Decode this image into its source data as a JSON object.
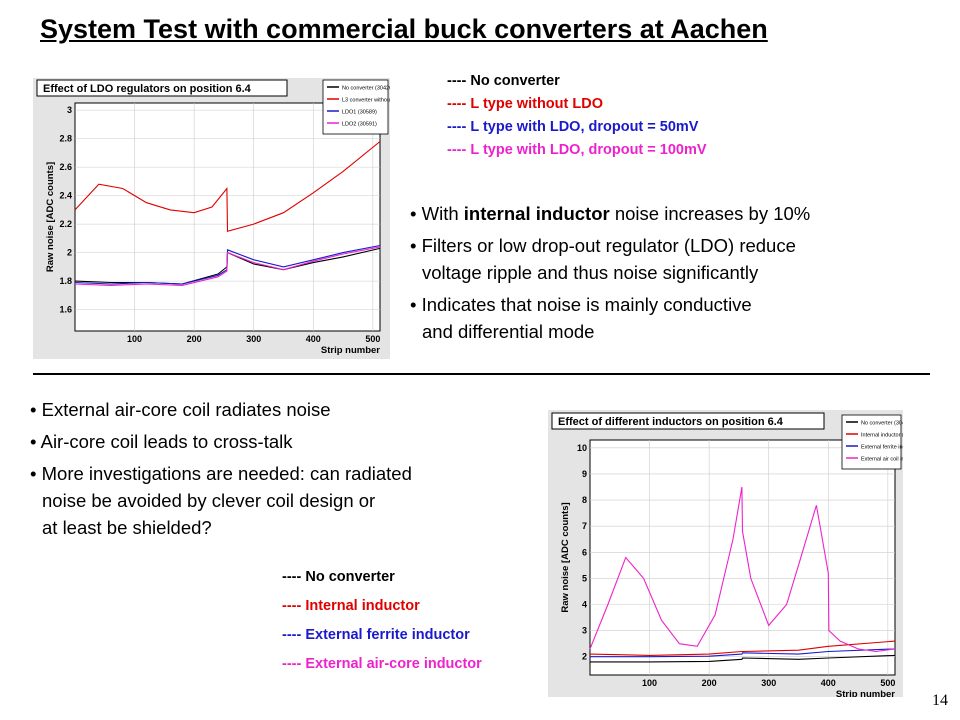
{
  "title": "System Test with commercial buck converters at Aachen",
  "page_number": "14",
  "colors": {
    "black": "#000000",
    "red": "#e00000",
    "blue": "#1a1acc",
    "magenta": "#ee22cc"
  },
  "top": {
    "legend": [
      {
        "text": "---- No converter",
        "color": "black"
      },
      {
        "text": "---- L type without LDO",
        "color": "red"
      },
      {
        "text": "---- L type with LDO, dropout = 50mV",
        "color": "blue"
      },
      {
        "text": "---- L type with LDO, dropout  = 100mV",
        "color": "magenta"
      }
    ],
    "bullet1_pre": "With ",
    "bullet1_bold": "internal inductor",
    "bullet1_post": " noise increases by 10%",
    "bullet2_l1": "Filters or low drop-out regulator (LDO) reduce",
    "bullet2_l2": "voltage ripple and thus noise significantly",
    "bullet3_l1": "Indicates that noise is mainly conductive",
    "bullet3_l2": "and differential mode"
  },
  "bottom": {
    "bullet1": "External air-core coil radiates noise",
    "bullet2": "Air-core coil leads to cross-talk",
    "bullet3_l1": "More investigations are needed: can radiated",
    "bullet3_l2": "noise be avoided by clever coil design or",
    "bullet3_l3": "at least be shielded?",
    "legend": [
      {
        "text": "---- No converter",
        "color": "black"
      },
      {
        "text": "---- Internal inductor",
        "color": "red"
      },
      {
        "text": "---- External ferrite inductor",
        "color": "blue"
      },
      {
        "text": "---- External air-core inductor",
        "color": "magenta"
      }
    ]
  },
  "chart_data": [
    {
      "type": "line",
      "title": "Effect of LDO regulators on position 6.4",
      "xlabel": "Strip number",
      "ylabel": "Raw noise [ADC counts]",
      "xlim": [
        0,
        512
      ],
      "ylim": [
        1.45,
        3.05
      ],
      "xticks": [
        100,
        200,
        300,
        400,
        500
      ],
      "yticks": [
        1.6,
        1.8,
        2,
        2.2,
        2.4,
        2.6,
        2.8,
        3
      ],
      "legend_entries": [
        "No converter (30426)",
        "L3 converter without LDO",
        "LDO1 (30589)",
        "LDO2 (30591)"
      ],
      "legend_position": "top-right",
      "series": [
        {
          "name": "No converter (30426)",
          "color": "black",
          "x": [
            0,
            60,
            120,
            180,
            240,
            255,
            256,
            300,
            350,
            400,
            450,
            512
          ],
          "y": [
            1.8,
            1.79,
            1.79,
            1.78,
            1.85,
            1.9,
            2.0,
            1.92,
            1.88,
            1.93,
            1.97,
            2.03
          ]
        },
        {
          "name": "L3 converter without LDO",
          "color": "red",
          "x": [
            0,
            40,
            80,
            120,
            160,
            200,
            230,
            255,
            256,
            300,
            350,
            400,
            450,
            512
          ],
          "y": [
            2.3,
            2.48,
            2.45,
            2.35,
            2.3,
            2.28,
            2.32,
            2.45,
            2.15,
            2.2,
            2.28,
            2.42,
            2.57,
            2.78
          ]
        },
        {
          "name": "LDO1 (30589)",
          "color": "blue",
          "x": [
            0,
            60,
            120,
            180,
            240,
            255,
            256,
            300,
            350,
            400,
            450,
            512
          ],
          "y": [
            1.79,
            1.78,
            1.79,
            1.78,
            1.84,
            1.88,
            2.02,
            1.95,
            1.9,
            1.95,
            2.0,
            2.05
          ]
        },
        {
          "name": "LDO2 (30591)",
          "color": "magenta",
          "x": [
            0,
            60,
            120,
            180,
            240,
            255,
            256,
            300,
            350,
            400,
            450,
            512
          ],
          "y": [
            1.78,
            1.77,
            1.78,
            1.77,
            1.83,
            1.87,
            2.0,
            1.93,
            1.88,
            1.94,
            1.99,
            2.04
          ]
        }
      ]
    },
    {
      "type": "line",
      "title": "Effect of different inductors on position 6.4",
      "xlabel": "Strip number",
      "ylabel": "Raw noise [ADC counts]",
      "xlim": [
        0,
        512
      ],
      "ylim": [
        1.3,
        10.3
      ],
      "xticks": [
        100,
        200,
        300,
        400,
        500
      ],
      "yticks": [
        2,
        3,
        4,
        5,
        6,
        7,
        8,
        9,
        10
      ],
      "legend_entries": [
        "No converter (30426)",
        "Internal inductor (L3) (30495)",
        "External ferrite inductor (30587)",
        "External air coil inductor (30585)"
      ],
      "legend_position": "top-right",
      "series": [
        {
          "name": "No converter (30426)",
          "color": "black",
          "x": [
            0,
            100,
            200,
            255,
            256,
            350,
            400,
            512
          ],
          "y": [
            1.8,
            1.8,
            1.82,
            1.9,
            1.95,
            1.9,
            1.95,
            2.05
          ]
        },
        {
          "name": "Internal inductor (L3) (30495)",
          "color": "red",
          "x": [
            0,
            100,
            200,
            255,
            256,
            350,
            400,
            512
          ],
          "y": [
            2.1,
            2.05,
            2.1,
            2.2,
            2.2,
            2.25,
            2.4,
            2.6
          ]
        },
        {
          "name": "External ferrite inductor (30587)",
          "color": "blue",
          "x": [
            0,
            100,
            200,
            255,
            256,
            350,
            400,
            512
          ],
          "y": [
            2.0,
            2.0,
            2.02,
            2.1,
            2.15,
            2.1,
            2.2,
            2.3
          ]
        },
        {
          "name": "External air coil inductor (30585)",
          "color": "magenta",
          "x": [
            0,
            30,
            60,
            90,
            120,
            150,
            180,
            210,
            240,
            255,
            256,
            270,
            300,
            330,
            350,
            380,
            400,
            401,
            420,
            450,
            480,
            512
          ],
          "y": [
            2.3,
            4.0,
            5.8,
            5.0,
            3.4,
            2.5,
            2.4,
            3.6,
            6.5,
            8.5,
            6.8,
            5.0,
            3.2,
            4.0,
            5.5,
            7.8,
            5.2,
            3.0,
            2.6,
            2.3,
            2.2,
            2.3
          ]
        }
      ]
    }
  ]
}
